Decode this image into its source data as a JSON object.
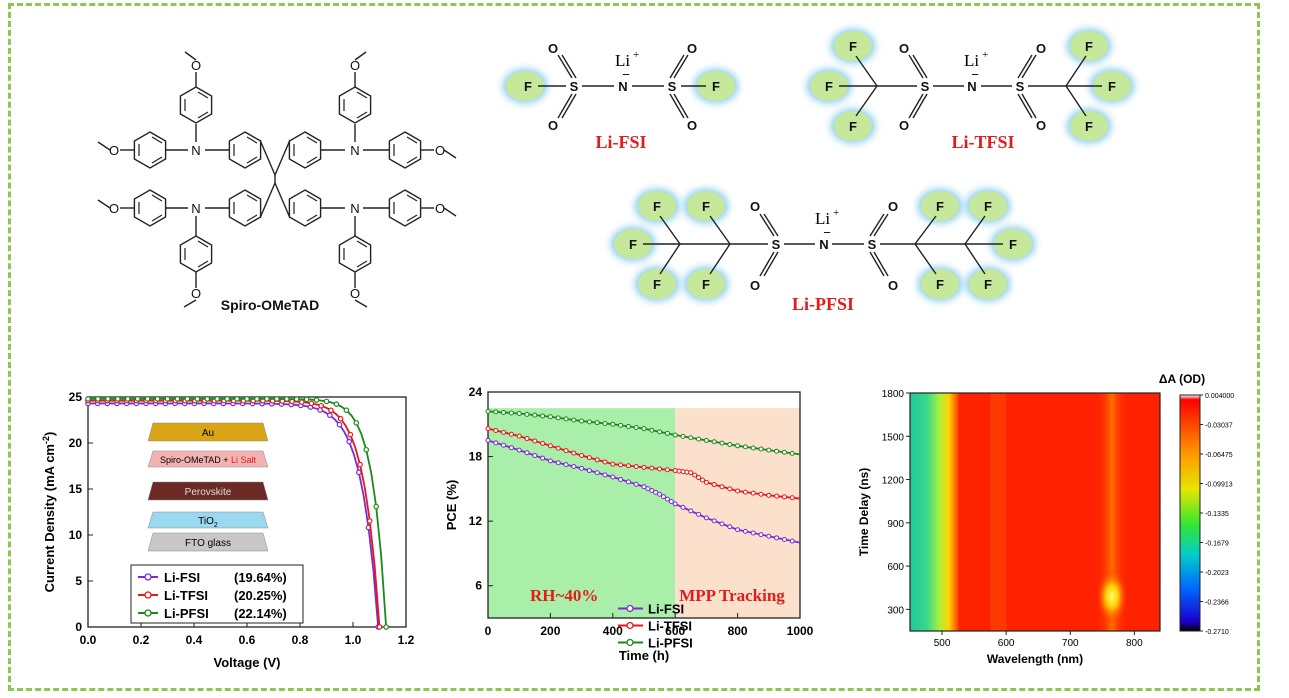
{
  "molecules": {
    "spiro": {
      "name": "Spiro-OMeTAD",
      "atom_n": "N",
      "atom_o": "O"
    },
    "fsi": {
      "name": "Li-FSI",
      "li": "Li",
      "li_charge": "+",
      "n": "N",
      "minus": "−",
      "s": "S",
      "o": "O",
      "f": "F"
    },
    "tfsi": {
      "name": "Li-TFSI"
    },
    "pfsi": {
      "name": "Li-PFSI"
    }
  },
  "colors": {
    "frame": "#8cc850",
    "fsi": "#7b2bd6",
    "tfsi": "#e8161a",
    "pfsi": "#1a8a1a",
    "label_red": "#e21b1b",
    "glow": "#5ab8e8",
    "blob": "#c6e89a"
  },
  "device": {
    "layers": [
      "Au",
      "Spiro-OMeTAD + ",
      "Li Salt",
      "Perovskite",
      "TiO",
      "2",
      "FTO glass"
    ],
    "colors": [
      "#d9a514",
      "#f4b3b3",
      "#6b2a24",
      "#9ad8ef",
      "#c8c8c8"
    ]
  },
  "chart_data": [
    {
      "type": "line",
      "xlabel": "Voltage (V)",
      "ylabel": "Current Density (mA cm",
      "ylabel_sup": "-2",
      "ylabel_end": ")",
      "xlim": [
        0.0,
        1.2
      ],
      "ylim": [
        0,
        25
      ],
      "xticks": [
        "0.0",
        "0.2",
        "0.4",
        "0.6",
        "0.8",
        "1.0",
        "1.2"
      ],
      "yticks": [
        "0",
        "5",
        "10",
        "15",
        "20",
        "25"
      ],
      "series": [
        {
          "name": "Li-FSI",
          "value": "(19.64%)",
          "color": "#7b2bd6",
          "jsc": 24.3,
          "voc": 1.095,
          "n": 0.062
        },
        {
          "name": "Li-TFSI",
          "value": "(20.25%)",
          "color": "#e8161a",
          "jsc": 24.6,
          "voc": 1.1,
          "n": 0.058
        },
        {
          "name": "Li-PFSI",
          "value": "(22.14%)",
          "color": "#1a8a1a",
          "jsc": 24.8,
          "voc": 1.125,
          "n": 0.05
        }
      ]
    },
    {
      "type": "line",
      "xlabel": "Time (h)",
      "ylabel": "PCE (%)",
      "xlim": [
        0,
        1000
      ],
      "ylim": [
        3,
        24
      ],
      "xticks": [
        "0",
        "200",
        "400",
        "600",
        "800",
        "1000"
      ],
      "yticks": [
        "6",
        "12",
        "18",
        "24"
      ],
      "regions": [
        {
          "label": "RH~40%",
          "from": 0,
          "to": 600,
          "color": "#a9efa9"
        },
        {
          "label": "MPP Tracking",
          "from": 600,
          "to": 1000,
          "color": "#fbe0cc"
        }
      ],
      "series": [
        {
          "name": "Li-FSI",
          "color": "#7b2bd6",
          "x": [
            0,
            100,
            200,
            300,
            400,
            500,
            550,
            600,
            700,
            800,
            900,
            1000
          ],
          "y": [
            19.5,
            18.6,
            17.6,
            16.9,
            16.1,
            15.2,
            14.5,
            13.6,
            12.3,
            11.2,
            10.6,
            10.0
          ]
        },
        {
          "name": "Li-TFSI",
          "color": "#e8161a",
          "x": [
            0,
            100,
            200,
            300,
            400,
            500,
            600,
            650,
            700,
            800,
            900,
            1000
          ],
          "y": [
            20.6,
            19.9,
            19.0,
            18.1,
            17.3,
            17.0,
            16.7,
            16.5,
            15.6,
            14.8,
            14.4,
            14.1
          ]
        },
        {
          "name": "Li-PFSI",
          "color": "#1a8a1a",
          "x": [
            0,
            100,
            200,
            300,
            400,
            500,
            600,
            700,
            800,
            900,
            1000
          ],
          "y": [
            22.2,
            22.0,
            21.7,
            21.3,
            21.0,
            20.6,
            20.0,
            19.5,
            19.0,
            18.6,
            18.2
          ]
        }
      ]
    },
    {
      "type": "heatmap",
      "title": "ΔA (OD)",
      "xlabel": "Wavelength (nm)",
      "ylabel": "Time Delay (ns)",
      "xlim": [
        450,
        840
      ],
      "ylim": [
        150,
        1800
      ],
      "xticks": [
        "500",
        "600",
        "700",
        "800"
      ],
      "yticks": [
        "300",
        "600",
        "900",
        "1200",
        "1500",
        "1800"
      ],
      "colorbar_ticks": [
        "0.004000",
        "-0.03037",
        "-0.06475",
        "-0.09913",
        "-0.1335",
        "-0.1679",
        "-0.2023",
        "-0.2366",
        "-0.2710"
      ],
      "features": [
        {
          "label": "bleach band",
          "from": 450,
          "to": 520
        },
        {
          "label": "hotspot",
          "wavelength": 765,
          "delay": 390
        }
      ]
    }
  ]
}
